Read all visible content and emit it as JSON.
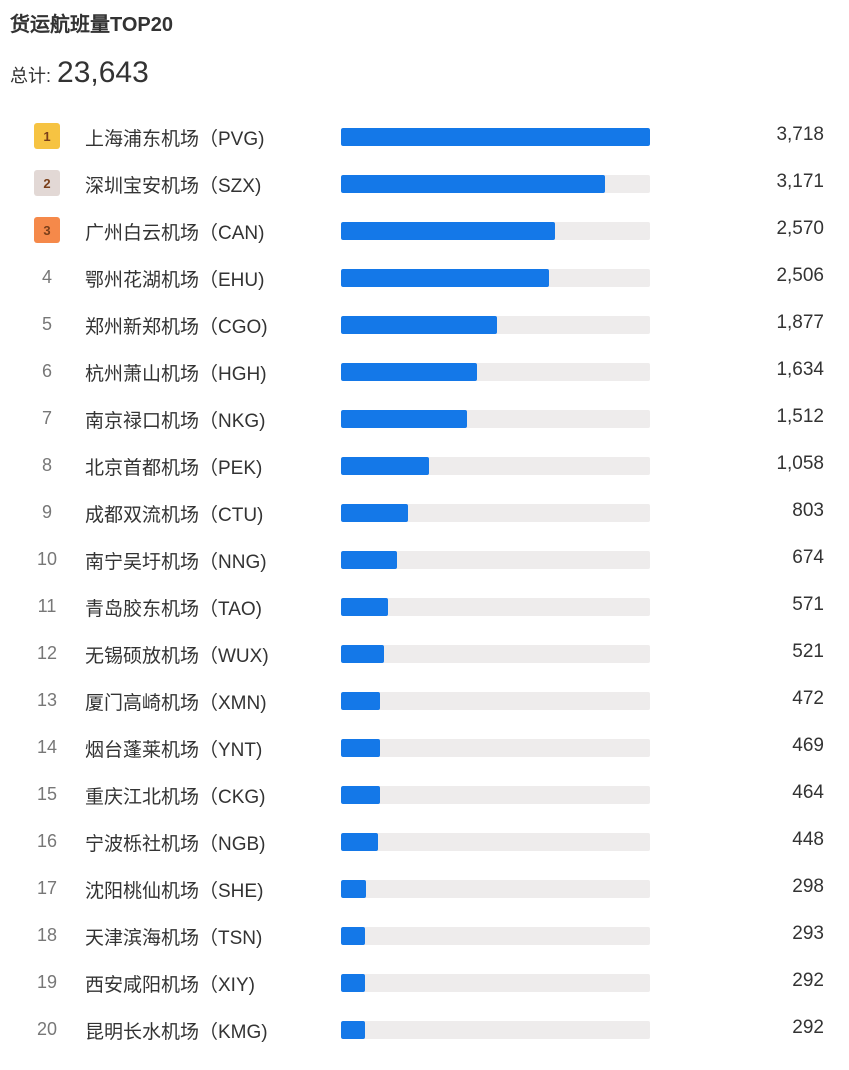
{
  "header": {
    "title": "货运航班量TOP20",
    "total_label": "总计:",
    "total_value": "23,643"
  },
  "colors": {
    "bar_fill": "#1478e8",
    "bar_track": "#eeecec",
    "badge_1": "#f6c342",
    "badge_2": "#e2d8d5",
    "badge_3": "#f5894a"
  },
  "rows": [
    {
      "rank": "1",
      "name": "上海浦东机场（PVG)",
      "value": "3,718"
    },
    {
      "rank": "2",
      "name": "深圳宝安机场（SZX)",
      "value": "3,171"
    },
    {
      "rank": "3",
      "name": "广州白云机场（CAN)",
      "value": "2,570"
    },
    {
      "rank": "4",
      "name": "鄂州花湖机场（EHU)",
      "value": "2,506"
    },
    {
      "rank": "5",
      "name": "郑州新郑机场（CGO)",
      "value": "1,877"
    },
    {
      "rank": "6",
      "name": "杭州萧山机场（HGH)",
      "value": "1,634"
    },
    {
      "rank": "7",
      "name": "南京禄口机场（NKG)",
      "value": "1,512"
    },
    {
      "rank": "8",
      "name": "北京首都机场（PEK)",
      "value": "1,058"
    },
    {
      "rank": "9",
      "name": "成都双流机场（CTU)",
      "value": "803"
    },
    {
      "rank": "10",
      "name": "南宁吴圩机场（NNG)",
      "value": "674"
    },
    {
      "rank": "11",
      "name": "青岛胶东机场（TAO)",
      "value": "571"
    },
    {
      "rank": "12",
      "name": "无锡硕放机场（WUX)",
      "value": "521"
    },
    {
      "rank": "13",
      "name": "厦门高崎机场（XMN)",
      "value": "472"
    },
    {
      "rank": "14",
      "name": "烟台蓬莱机场（YNT)",
      "value": "469"
    },
    {
      "rank": "15",
      "name": "重庆江北机场（CKG)",
      "value": "464"
    },
    {
      "rank": "16",
      "name": "宁波栎社机场（NGB)",
      "value": "448"
    },
    {
      "rank": "17",
      "name": "沈阳桃仙机场（SHE)",
      "value": "298"
    },
    {
      "rank": "18",
      "name": "天津滨海机场（TSN)",
      "value": "293"
    },
    {
      "rank": "19",
      "name": "西安咸阳机场（XIY)",
      "value": "292"
    },
    {
      "rank": "20",
      "name": "昆明长水机场（KMG)",
      "value": "292"
    }
  ],
  "chart_data": {
    "type": "bar",
    "orientation": "horizontal",
    "title": "货运航班量TOP20",
    "subtitle": "总计: 23,643",
    "categories": [
      "上海浦东机场（PVG)",
      "深圳宝安机场（SZX)",
      "广州白云机场（CAN)",
      "鄂州花湖机场（EHU)",
      "郑州新郑机场（CGO)",
      "杭州萧山机场（HGH)",
      "南京禄口机场（NKG)",
      "北京首都机场（PEK)",
      "成都双流机场（CTU)",
      "南宁吴圩机场（NNG)",
      "青岛胶东机场（TAO)",
      "无锡硕放机场（WUX)",
      "厦门高崎机场（XMN)",
      "烟台蓬莱机场（YNT)",
      "重庆江北机场（CKG)",
      "宁波栎社机场（NGB)",
      "沈阳桃仙机场（SHE)",
      "天津滨海机场（TSN)",
      "西安咸阳机场（XIY)",
      "昆明长水机场（KMG)"
    ],
    "values": [
      3718,
      3171,
      2570,
      2506,
      1877,
      1634,
      1512,
      1058,
      803,
      674,
      571,
      521,
      472,
      469,
      464,
      448,
      298,
      293,
      292,
      292
    ],
    "xlabel": "",
    "ylabel": "",
    "xlim": [
      0,
      3718
    ],
    "grid": false,
    "legend": "none"
  }
}
